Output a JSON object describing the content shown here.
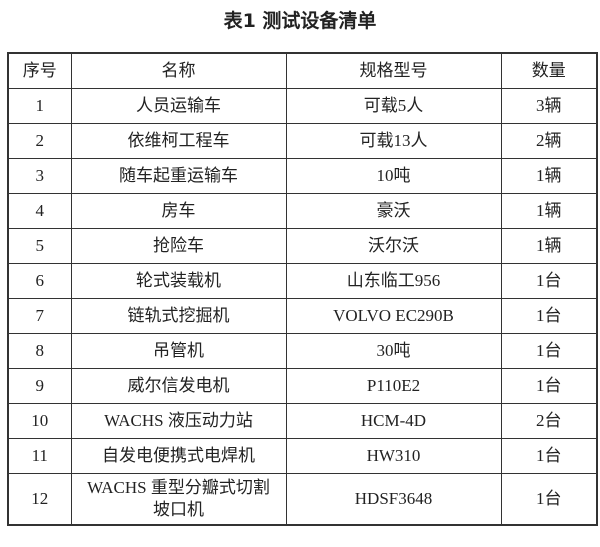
{
  "title": "表1  测试设备清单",
  "columns": [
    "序号",
    "名称",
    "规格型号",
    "数量"
  ],
  "rows": [
    [
      "1",
      "人员运输车",
      "可载5人",
      "3辆"
    ],
    [
      "2",
      "依维柯工程车",
      "可载13人",
      "2辆"
    ],
    [
      "3",
      "随车起重运输车",
      "10吨",
      "1辆"
    ],
    [
      "4",
      "房车",
      "豪沃",
      "1辆"
    ],
    [
      "5",
      "抢险车",
      "沃尔沃",
      "1辆"
    ],
    [
      "6",
      "轮式装载机",
      "山东临工956",
      "1台"
    ],
    [
      "7",
      "链轨式挖掘机",
      "VOLVO  EC290B",
      "1台"
    ],
    [
      "8",
      "吊管机",
      "30吨",
      "1台"
    ],
    [
      "9",
      "威尔信发电机",
      "P110E2",
      "1台"
    ],
    [
      "10",
      "WACHS 液压动力站",
      "HCM-4D",
      "2台"
    ],
    [
      "11",
      "自发电便携式电焊机",
      "HW310",
      "1台"
    ],
    [
      "12",
      "WACHS 重型分瓣式切割坡口机",
      "HDSF3648",
      "1台"
    ]
  ]
}
